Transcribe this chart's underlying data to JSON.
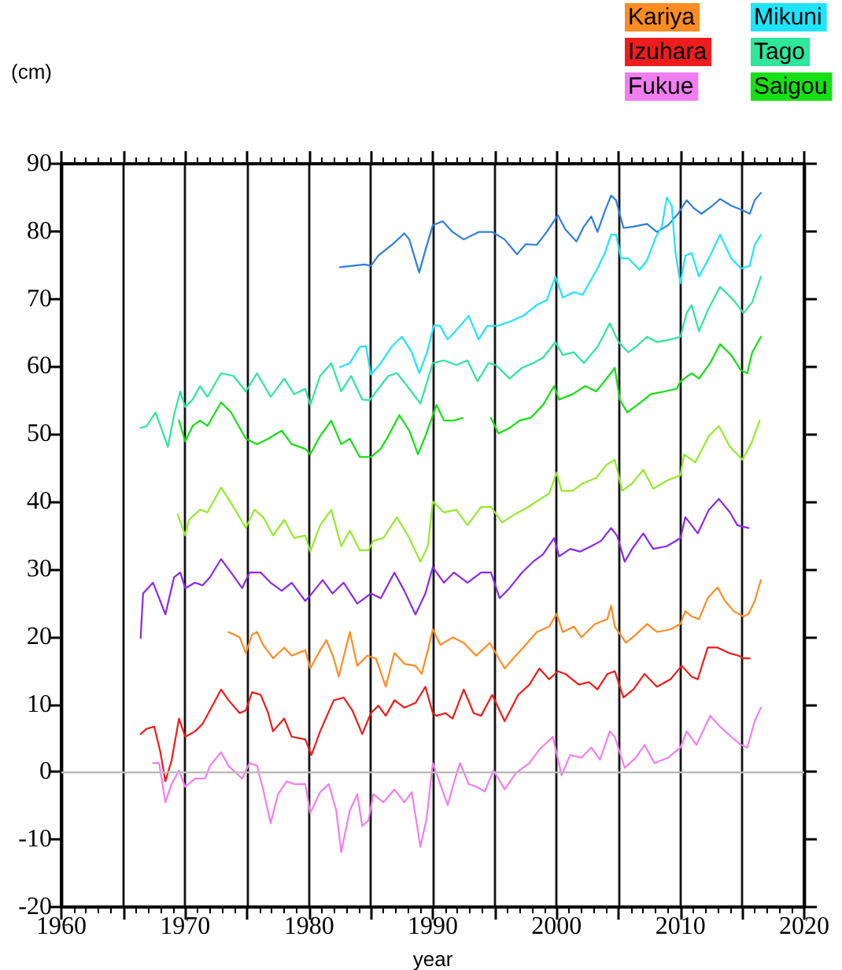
{
  "chart_data": {
    "type": "line",
    "xlabel": "year",
    "ylabel": "(cm)",
    "xlim": [
      1960,
      2020
    ],
    "xticks": [
      1960,
      {
        "value": 1965,
        "label": null
      },
      1970,
      {
        "value": 1975,
        "label": null
      },
      1980,
      {
        "value": 1985,
        "label": null
      },
      1990,
      {
        "value": 1995,
        "label": null
      },
      2000,
      {
        "value": 2005,
        "label": null
      },
      2010,
      {
        "value": 2015,
        "label": null
      },
      2020
    ],
    "ylim": [
      -20,
      90
    ],
    "yticks": [
      -20,
      -10,
      0,
      10,
      20,
      30,
      40,
      50,
      60,
      70,
      80,
      90
    ],
    "grid": "x",
    "legend": "top right",
    "marker": "none",
    "line_style": "solid",
    "ref_lines": [
      {
        "axis": "y",
        "value": 0,
        "label": null,
        "color": "#bbbbbb"
      }
    ],
    "series": [
      {
        "color": "#2f7fdc",
        "x": [
          1982.5,
          1983.5,
          1984.5,
          1985.0,
          1985.6,
          1986.7,
          1987.7,
          1988.1,
          1988.9,
          1989.4,
          1990.0,
          1990.8,
          1991.6,
          1992.5,
          1993.7,
          1994.8,
          1995.8,
          1996.8,
          1997.5,
          1998.4,
          1999.2,
          2000.1,
          2000.7,
          2001.6,
          2002.2,
          2002.8,
          2003.3,
          2003.9,
          2004.4,
          2004.8,
          2005.4,
          2006.2,
          2007.3,
          2008.1,
          2009.0,
          2009.8,
          2010.5,
          2011.1,
          2011.7,
          2012.6,
          2013.2,
          2014.1,
          2014.9,
          2015.6,
          2016.0,
          2016.5
        ],
        "values": [
          74.7,
          74.9,
          75.1,
          74.9,
          76.4,
          78.0,
          79.7,
          78.8,
          73.9,
          77.2,
          80.9,
          81.5,
          79.9,
          78.8,
          79.9,
          79.9,
          78.8,
          76.6,
          78.1,
          78.0,
          79.9,
          82.4,
          80.3,
          78.5,
          80.7,
          82.2,
          79.9,
          83.0,
          85.3,
          84.6,
          80.5,
          80.7,
          81.1,
          79.9,
          80.9,
          82.6,
          84.6,
          83.4,
          82.6,
          83.8,
          84.8,
          83.8,
          83.2,
          82.6,
          84.6,
          85.7
        ]
      },
      {
        "color": "#96ea2a",
        "x": [
          1969.4,
          1970.0,
          1970.3,
          1971.2,
          1971.8,
          1972.9,
          1973.9,
          1974.9,
          1975.6,
          1976.3,
          1977.1,
          1978.0,
          1978.8,
          1979.7,
          1980.1,
          1980.9,
          1981.8,
          1982.6,
          1983.3,
          1984.1,
          1984.8,
          1985.2,
          1986.0,
          1987.1,
          1988.1,
          1989.0,
          1989.6,
          1990.0,
          1990.9,
          1991.9,
          1992.8,
          1993.9,
          1994.7,
          1995.6,
          1996.6,
          1997.7,
          1998.7,
          1999.4,
          2000.0,
          2000.4,
          2001.3,
          2002.1,
          2003.2,
          2004.0,
          2004.7,
          2005.3,
          2006.1,
          2007.0,
          2007.8,
          2008.9,
          2010.0,
          2010.3,
          2011.2,
          2012.3,
          2013.1,
          2014.0,
          2015.0,
          2015.7,
          2016.4
        ],
        "values": [
          38.1,
          35.0,
          37.3,
          38.8,
          38.4,
          42.1,
          39.2,
          36.1,
          38.8,
          37.7,
          35.0,
          37.3,
          34.6,
          35.0,
          32.6,
          36.5,
          38.8,
          33.4,
          35.7,
          32.8,
          32.8,
          34.2,
          34.6,
          37.7,
          34.6,
          31.1,
          33.4,
          40.0,
          38.4,
          38.8,
          36.5,
          39.2,
          39.2,
          36.9,
          38.1,
          39.2,
          40.4,
          41.2,
          44.3,
          41.6,
          41.6,
          42.7,
          43.5,
          45.4,
          46.2,
          41.6,
          42.7,
          44.7,
          41.9,
          43.1,
          43.9,
          47.0,
          45.8,
          49.7,
          51.2,
          48.1,
          46.2,
          48.5,
          52.0
        ]
      },
      {
        "color": "#8a2be6",
        "x": [
          1966.4,
          1966.6,
          1967.4,
          1967.9,
          1968.4,
          1969.1,
          1969.6,
          1970.0,
          1970.8,
          1971.4,
          1972.0,
          1972.9,
          1973.7,
          1974.6,
          1975.2,
          1976.1,
          1976.9,
          1977.8,
          1978.6,
          1979.7,
          1980.1,
          1981.1,
          1981.9,
          1982.8,
          1983.9,
          1985.0,
          1985.8,
          1986.9,
          1987.7,
          1988.6,
          1989.4,
          1990.0,
          1990.9,
          1991.7,
          1992.8,
          1993.9,
          1994.7,
          1995.4,
          1996.2,
          1997.2,
          1998.1,
          1998.9,
          1999.8,
          2000.2,
          2001.1,
          2001.9,
          2002.8,
          2003.6,
          2004.4,
          2004.9,
          2005.5,
          2006.1,
          2007.0,
          2007.8,
          2008.9,
          2010.0,
          2010.4,
          2011.4,
          2012.3,
          2013.1,
          2014.0,
          2014.6,
          2015.5
        ],
        "values": [
          19.8,
          26.4,
          28.0,
          25.7,
          23.3,
          28.8,
          29.5,
          27.2,
          28.0,
          27.6,
          28.8,
          31.5,
          29.5,
          27.2,
          29.5,
          29.5,
          28.0,
          26.8,
          28.0,
          25.3,
          26.1,
          28.4,
          26.4,
          28.0,
          24.9,
          26.4,
          25.7,
          29.5,
          26.8,
          23.3,
          26.4,
          30.3,
          28.0,
          29.5,
          28.0,
          29.5,
          29.5,
          25.7,
          27.2,
          29.5,
          31.1,
          32.2,
          34.6,
          31.9,
          33.0,
          32.6,
          33.4,
          34.2,
          36.1,
          34.9,
          31.1,
          33.0,
          35.3,
          33.0,
          33.4,
          34.6,
          37.7,
          35.3,
          38.8,
          40.4,
          38.4,
          36.5,
          36.1
        ]
      },
      {
        "name": "Kariya",
        "color": "#ff8c22",
        "x": [
          1973.5,
          1974.4,
          1974.9,
          1975.4,
          1975.8,
          1976.3,
          1977.1,
          1978.0,
          1978.6,
          1979.7,
          1980.1,
          1980.9,
          1981.4,
          1982.0,
          1982.4,
          1983.3,
          1983.9,
          1984.7,
          1985.4,
          1986.2,
          1986.9,
          1987.7,
          1988.6,
          1989.1,
          1989.6,
          1990.0,
          1990.6,
          1991.6,
          1992.5,
          1993.5,
          1994.6,
          1995.8,
          1996.5,
          1997.3,
          1998.4,
          1999.4,
          2000.0,
          2000.5,
          2001.4,
          2002.0,
          2003.1,
          2004.1,
          2004.4,
          2004.7,
          2005.6,
          2006.4,
          2007.3,
          2008.1,
          2009.2,
          2010.0,
          2010.4,
          2010.9,
          2011.5,
          2012.2,
          2013.0,
          2013.6,
          2014.3,
          2015.1,
          2015.5,
          2016.0,
          2016.5
        ],
        "values": [
          20.7,
          19.9,
          17.6,
          20.3,
          20.7,
          18.8,
          16.8,
          18.4,
          17.2,
          18.0,
          15.3,
          18.0,
          19.5,
          16.8,
          14.1,
          20.7,
          15.7,
          17.2,
          16.8,
          12.6,
          17.6,
          16.0,
          15.7,
          14.5,
          18.0,
          21.1,
          18.8,
          19.9,
          19.1,
          17.2,
          19.1,
          15.3,
          16.8,
          18.4,
          20.7,
          21.5,
          23.4,
          20.7,
          21.5,
          19.9,
          21.9,
          22.6,
          24.6,
          21.5,
          19.1,
          20.3,
          21.9,
          20.7,
          21.1,
          21.9,
          23.8,
          23.0,
          22.6,
          25.7,
          27.3,
          25.3,
          23.8,
          23.0,
          23.4,
          25.3,
          28.4
        ]
      },
      {
        "name": "Mikuni",
        "color": "#1ee4ff",
        "x": [
          1982.5,
          1983.3,
          1984.1,
          1984.6,
          1985.0,
          1985.8,
          1986.7,
          1987.5,
          1988.3,
          1988.9,
          1989.5,
          1990.1,
          1990.6,
          1991.2,
          1992.0,
          1992.9,
          1993.7,
          1994.4,
          1995.2,
          1996.3,
          1997.3,
          1998.4,
          1999.2,
          1999.9,
          2000.5,
          2001.4,
          2002.1,
          2002.8,
          2003.3,
          2003.9,
          2004.4,
          2004.8,
          2005.2,
          2005.8,
          2006.7,
          2007.3,
          2008.0,
          2008.5,
          2008.9,
          2009.3,
          2009.6,
          2010.0,
          2010.4,
          2010.9,
          2011.5,
          2012.4,
          2013.2,
          2014.1,
          2014.9,
          2015.6,
          2016.0,
          2016.5
        ],
        "values": [
          59.9,
          60.5,
          62.9,
          63.0,
          58.8,
          60.5,
          63.0,
          64.4,
          62.1,
          59.0,
          61.9,
          66.1,
          66.0,
          64.0,
          65.6,
          67.5,
          64.0,
          66.0,
          66.0,
          66.7,
          67.5,
          69.1,
          69.8,
          73.3,
          70.2,
          71.0,
          70.6,
          72.9,
          74.5,
          76.8,
          79.5,
          79.5,
          76.0,
          76.0,
          74.3,
          75.7,
          79.1,
          80.7,
          85.0,
          83.8,
          76.8,
          72.3,
          76.4,
          76.8,
          73.3,
          76.4,
          79.5,
          76.0,
          74.5,
          74.9,
          78.0,
          79.5
        ]
      },
      {
        "name": "Izuhara",
        "color": "#ee1c1c",
        "x": [
          1966.4,
          1966.9,
          1967.5,
          1968.0,
          1968.4,
          1968.9,
          1969.5,
          1970.0,
          1970.8,
          1971.4,
          1972.2,
          1972.9,
          1973.5,
          1974.4,
          1974.9,
          1975.4,
          1976.1,
          1976.7,
          1977.1,
          1978.0,
          1978.6,
          1979.7,
          1980.2,
          1980.9,
          1982.0,
          1982.8,
          1983.5,
          1984.3,
          1985.0,
          1985.6,
          1986.2,
          1986.9,
          1987.7,
          1988.6,
          1989.4,
          1990.0,
          1990.3,
          1991.0,
          1991.6,
          1992.5,
          1993.3,
          1993.9,
          1994.8,
          1995.8,
          1996.9,
          1997.8,
          1998.6,
          1999.4,
          2000.1,
          2000.7,
          2001.8,
          2002.6,
          2003.3,
          2004.1,
          2004.7,
          2005.4,
          2006.2,
          2007.1,
          2008.1,
          2009.2,
          2010.1,
          2010.9,
          2011.4,
          2012.2,
          2013.0,
          2013.9,
          2014.7,
          2015.1,
          2015.6
        ],
        "values": [
          5.6,
          6.4,
          6.7,
          2.9,
          -1.4,
          1.7,
          7.9,
          5.2,
          6.0,
          7.1,
          9.8,
          12.2,
          10.6,
          8.7,
          9.1,
          11.8,
          11.4,
          8.7,
          6.0,
          7.9,
          5.2,
          4.8,
          2.5,
          6.0,
          10.6,
          11.0,
          9.1,
          5.6,
          8.7,
          9.8,
          8.3,
          10.6,
          9.5,
          10.2,
          12.6,
          8.7,
          8.3,
          8.7,
          7.9,
          12.2,
          8.7,
          8.3,
          11.4,
          7.5,
          11.4,
          12.9,
          15.3,
          13.7,
          14.9,
          14.5,
          12.9,
          13.3,
          12.2,
          14.5,
          14.9,
          11.0,
          12.2,
          14.5,
          12.6,
          13.7,
          15.7,
          14.1,
          13.7,
          18.4,
          18.4,
          17.6,
          17.2,
          16.8,
          16.8
        ]
      },
      {
        "name": "Tago",
        "color": "#2ee69c",
        "x": [
          1966.4,
          1966.9,
          1967.6,
          1968.0,
          1968.6,
          1969.1,
          1969.6,
          1970.0,
          1970.6,
          1971.2,
          1971.8,
          1972.9,
          1973.9,
          1974.9,
          1975.8,
          1976.9,
          1978.0,
          1978.8,
          1979.7,
          1980.1,
          1980.9,
          1981.8,
          1982.6,
          1983.4,
          1984.3,
          1984.9,
          1985.6,
          1986.4,
          1987.1,
          1988.1,
          1989.0,
          1990.0,
          1990.9,
          1991.9,
          1992.8,
          1993.6,
          1994.5,
          1995.1,
          1996.2,
          1997.2,
          1998.1,
          1998.9,
          1999.9,
          2000.5,
          2001.4,
          2002.2,
          2003.3,
          2004.3,
          2005.0,
          2005.8,
          2006.4,
          2007.3,
          2008.1,
          2009.2,
          2010.0,
          2010.5,
          2010.9,
          2011.5,
          2012.2,
          2013.2,
          2014.3,
          2015.1,
          2015.8,
          2016.5
        ],
        "values": [
          50.9,
          51.2,
          53.2,
          51.2,
          48.1,
          52.8,
          56.3,
          54.0,
          55.1,
          57.1,
          55.5,
          59.0,
          58.6,
          56.3,
          59.0,
          55.5,
          58.2,
          55.9,
          56.7,
          54.3,
          58.6,
          60.5,
          56.3,
          58.6,
          55.1,
          55.0,
          56.7,
          58.6,
          59.0,
          56.7,
          54.5,
          60.5,
          60.9,
          60.2,
          60.9,
          57.8,
          60.5,
          60.2,
          58.2,
          59.8,
          60.5,
          61.3,
          63.6,
          61.7,
          62.1,
          60.5,
          62.9,
          66.4,
          63.6,
          62.1,
          62.9,
          64.4,
          63.6,
          64.0,
          64.4,
          67.9,
          69.1,
          65.2,
          68.3,
          71.8,
          69.8,
          67.9,
          69.5,
          73.3
        ]
      },
      {
        "name": "Fukue",
        "color": "#f07ef0",
        "x": [
          1967.4,
          1967.9,
          1968.4,
          1968.9,
          1969.5,
          1970.0,
          1970.8,
          1971.6,
          1972.0,
          1972.9,
          1973.5,
          1974.6,
          1975.2,
          1975.8,
          1976.3,
          1976.9,
          1977.5,
          1978.2,
          1978.8,
          1979.7,
          1980.1,
          1980.9,
          1981.6,
          1982.2,
          1982.6,
          1983.3,
          1983.9,
          1984.3,
          1984.8,
          1985.2,
          1986.0,
          1986.9,
          1987.7,
          1988.3,
          1989.0,
          1989.5,
          1990.0,
          1990.6,
          1991.2,
          1991.8,
          1992.2,
          1992.9,
          1993.5,
          1994.2,
          1994.9,
          1995.8,
          1996.7,
          1997.8,
          1998.6,
          1999.7,
          2000.4,
          2001.1,
          2002.0,
          2002.8,
          2003.5,
          2004.3,
          2004.7,
          2005.5,
          2006.4,
          2007.1,
          2007.9,
          2009.0,
          2010.0,
          2010.5,
          2011.3,
          2012.4,
          2013.2,
          2014.1,
          2014.9,
          2015.4,
          2016.0,
          2016.5
        ],
        "values": [
          1.3,
          1.3,
          -4.5,
          -1.8,
          0.2,
          -2.2,
          -1.0,
          -1.0,
          0.9,
          2.9,
          0.9,
          -1.0,
          1.3,
          0.9,
          -2.6,
          -7.6,
          -3.3,
          -1.4,
          -1.8,
          -1.8,
          -6.1,
          -3.0,
          -1.8,
          -5.7,
          -11.9,
          -5.7,
          -3.3,
          -8.0,
          -7.2,
          -3.3,
          -4.5,
          -2.6,
          -4.5,
          -3.0,
          -11.1,
          -6.9,
          1.3,
          -1.8,
          -4.9,
          -1.0,
          1.3,
          -1.8,
          -2.2,
          -2.9,
          0.2,
          -2.6,
          -0.2,
          1.3,
          3.3,
          5.2,
          -0.5,
          2.5,
          2.1,
          3.6,
          1.8,
          6.0,
          5.2,
          0.6,
          2.1,
          4.0,
          1.3,
          2.1,
          3.6,
          6.0,
          4.0,
          8.3,
          6.7,
          5.2,
          4.0,
          3.6,
          7.5,
          9.5
        ]
      },
      {
        "name": "Saigou",
        "color": "#14e014",
        "x": [
          1969.5,
          1970.0,
          1970.6,
          1971.2,
          1971.8,
          1972.9,
          1973.7,
          1974.9,
          1975.8,
          1976.7,
          1977.8,
          1978.6,
          1979.7,
          1980.1,
          1980.9,
          1981.8,
          1982.6,
          1983.3,
          1984.1,
          1985.0,
          1985.8,
          1986.4,
          1987.3,
          1988.1,
          1988.8,
          1989.4,
          1990.3,
          1990.9,
          1991.7,
          1992.4,
          1993.5,
          1994.7,
          1995.3,
          1996.2,
          1997.0,
          1997.9,
          1998.9,
          1999.8,
          2000.2,
          2001.3,
          2002.3,
          2003.2,
          2004.2,
          2004.7,
          2005.1,
          2005.7,
          2006.8,
          2007.6,
          2008.7,
          2009.7,
          2010.0,
          2010.3,
          2010.9,
          2011.5,
          2012.4,
          2013.2,
          2014.1,
          2014.9,
          2015.4,
          2015.8,
          2016.5
        ],
        "values": [
          52.0,
          48.9,
          51.2,
          52.0,
          51.2,
          54.7,
          53.2,
          49.3,
          48.5,
          49.3,
          50.5,
          48.5,
          47.8,
          47.0,
          49.7,
          52.0,
          48.5,
          49.3,
          46.6,
          46.6,
          47.8,
          49.7,
          52.8,
          50.5,
          47.0,
          49.7,
          54.3,
          52.0,
          52.0,
          52.4,
          null,
          52.4,
          50.1,
          50.9,
          52.0,
          52.4,
          54.3,
          57.1,
          55.1,
          55.9,
          57.1,
          56.3,
          58.6,
          59.8,
          55.1,
          53.2,
          54.7,
          55.9,
          56.3,
          56.7,
          57.8,
          58.2,
          59.0,
          58.2,
          60.5,
          63.3,
          61.7,
          59.4,
          59.0,
          62.1,
          64.4
        ]
      }
    ]
  }
}
